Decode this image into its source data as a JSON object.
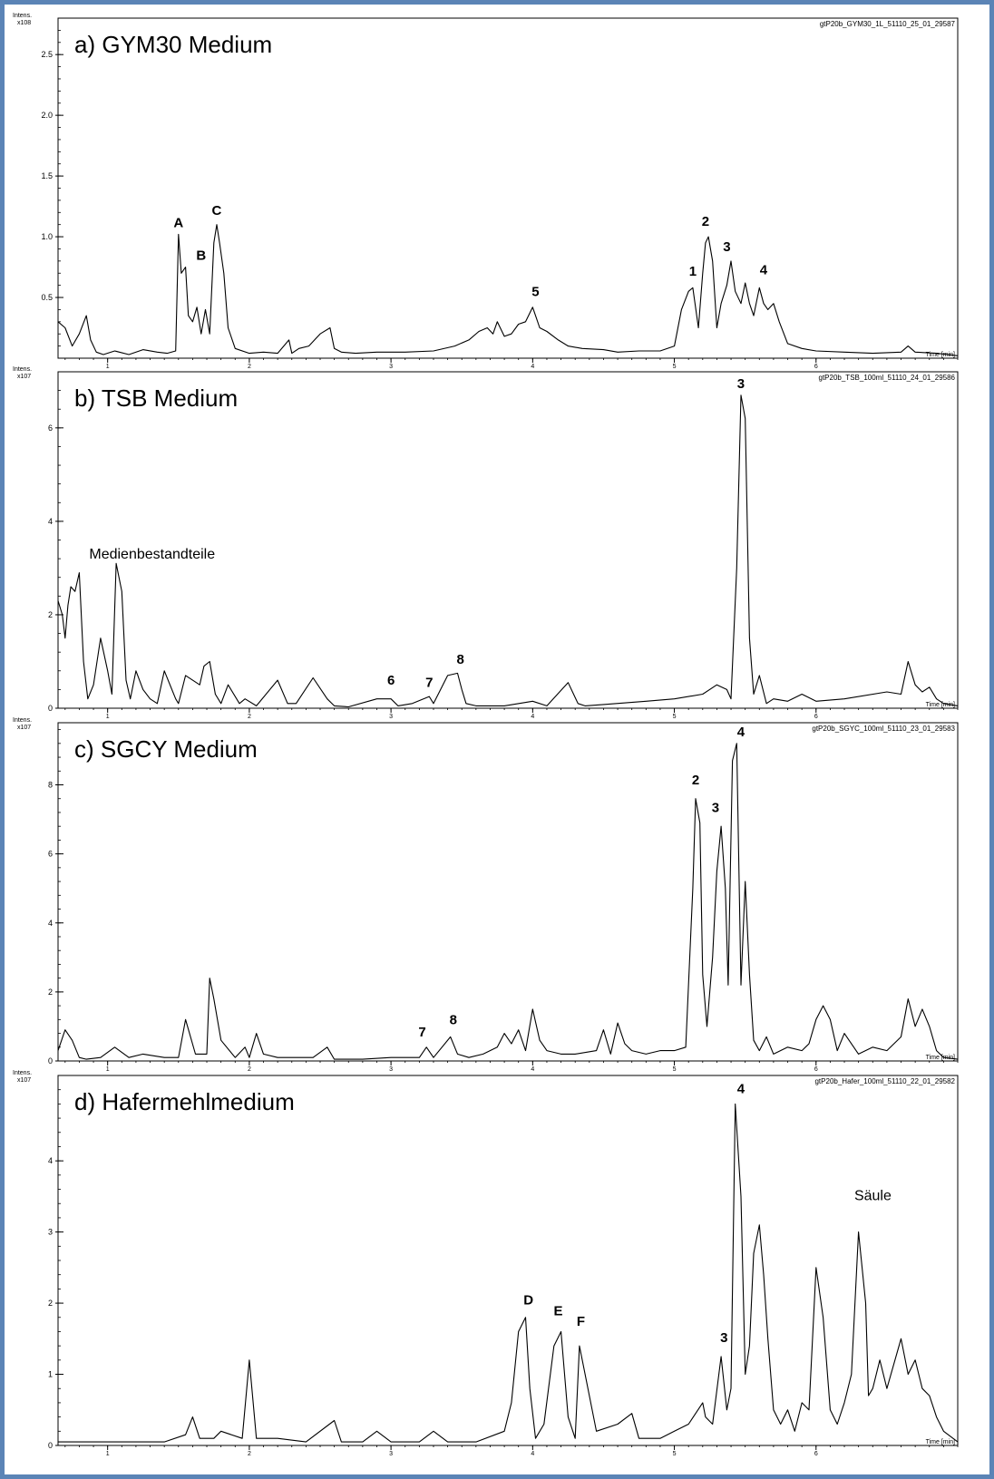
{
  "figure": {
    "frame_color": "#5b84b6",
    "trace_color": "#000000"
  },
  "chart_data": [
    {
      "type": "line",
      "title": "a) GYM30 Medium",
      "file_label": "gtP20b_GYM30_1L_51110_25_01_29587",
      "ylabel": "Intens.",
      "yunit": "x10^8",
      "xlabel": "Time [min]",
      "xlim": [
        0.65,
        7.0
      ],
      "ylim": [
        0,
        2.8
      ],
      "xticks": [
        1,
        2,
        3,
        4,
        5,
        6
      ],
      "yticks": [
        0.5,
        1.0,
        1.5,
        2.0,
        2.5
      ],
      "ytick_labels": [
        "0.5",
        "1.0",
        "1.5",
        "2.0",
        "2.5"
      ],
      "baseline": 0.03,
      "series": [
        {
          "x": [
            0.65,
            0.7,
            0.75,
            0.8,
            0.85,
            0.88,
            0.92,
            0.97,
            1.05,
            1.15,
            1.25,
            1.35,
            1.42,
            1.48,
            1.5,
            1.52,
            1.55,
            1.57,
            1.6,
            1.63,
            1.66,
            1.69,
            1.72,
            1.75,
            1.77,
            1.79,
            1.82,
            1.85,
            1.9,
            2.0,
            2.1,
            2.2,
            2.28,
            2.3,
            2.35,
            2.42,
            2.5,
            2.57,
            2.6,
            2.65,
            2.75,
            2.9,
            3.1,
            3.3,
            3.45,
            3.55,
            3.62,
            3.68,
            3.72,
            3.75,
            3.8,
            3.85,
            3.9,
            3.95,
            4.0,
            4.02,
            4.05,
            4.1,
            4.18,
            4.25,
            4.35,
            4.5,
            4.6,
            4.75,
            4.9,
            5.0,
            5.05,
            5.1,
            5.13,
            5.17,
            5.2,
            5.22,
            5.24,
            5.27,
            5.3,
            5.33,
            5.37,
            5.4,
            5.43,
            5.47,
            5.5,
            5.53,
            5.56,
            5.6,
            5.63,
            5.66,
            5.7,
            5.74,
            5.8,
            5.9,
            6.0,
            6.2,
            6.4,
            6.6,
            6.65,
            6.7,
            6.85,
            7.0
          ],
          "y": [
            0.3,
            0.25,
            0.1,
            0.2,
            0.35,
            0.15,
            0.05,
            0.03,
            0.06,
            0.03,
            0.07,
            0.05,
            0.04,
            0.06,
            1.02,
            0.7,
            0.75,
            0.35,
            0.3,
            0.42,
            0.2,
            0.4,
            0.2,
            0.95,
            1.1,
            0.95,
            0.7,
            0.25,
            0.08,
            0.04,
            0.05,
            0.04,
            0.15,
            0.04,
            0.08,
            0.1,
            0.2,
            0.25,
            0.08,
            0.05,
            0.04,
            0.05,
            0.05,
            0.06,
            0.1,
            0.15,
            0.22,
            0.25,
            0.2,
            0.3,
            0.18,
            0.2,
            0.28,
            0.3,
            0.42,
            0.35,
            0.25,
            0.22,
            0.15,
            0.1,
            0.08,
            0.07,
            0.05,
            0.06,
            0.06,
            0.1,
            0.4,
            0.55,
            0.58,
            0.25,
            0.7,
            0.95,
            1.0,
            0.8,
            0.25,
            0.45,
            0.6,
            0.8,
            0.55,
            0.45,
            0.62,
            0.45,
            0.35,
            0.58,
            0.45,
            0.4,
            0.45,
            0.3,
            0.12,
            0.08,
            0.06,
            0.05,
            0.04,
            0.05,
            0.1,
            0.05,
            0.04,
            0.02
          ]
        }
      ],
      "peak_labels": [
        {
          "label": "A",
          "x": 1.5,
          "y": 1.02
        },
        {
          "label": "B",
          "x": 1.66,
          "y": 0.75
        },
        {
          "label": "C",
          "x": 1.77,
          "y": 1.12
        },
        {
          "label": "1",
          "x": 5.13,
          "y": 0.62
        },
        {
          "label": "2",
          "x": 5.22,
          "y": 1.03
        },
        {
          "label": "3",
          "x": 5.37,
          "y": 0.82
        },
        {
          "label": "4",
          "x": 5.63,
          "y": 0.63
        },
        {
          "label": "5",
          "x": 4.02,
          "y": 0.45
        }
      ],
      "annotations": []
    },
    {
      "type": "line",
      "title": "b) TSB Medium",
      "file_label": "gtP20b_TSB_100ml_51110_24_01_29586",
      "ylabel": "Intens.",
      "yunit": "x10^7",
      "xlabel": "Time [min]",
      "xlim": [
        0.65,
        7.0
      ],
      "ylim": [
        0,
        7.2
      ],
      "xticks": [
        1,
        2,
        3,
        4,
        5,
        6
      ],
      "yticks": [
        0,
        2,
        4,
        6
      ],
      "ytick_labels": [
        "0",
        "2",
        "4",
        "6"
      ],
      "baseline": 0.0,
      "series": [
        {
          "x": [
            0.65,
            0.68,
            0.7,
            0.72,
            0.74,
            0.77,
            0.8,
            0.83,
            0.86,
            0.9,
            0.95,
            1.0,
            1.03,
            1.06,
            1.1,
            1.13,
            1.16,
            1.2,
            1.25,
            1.3,
            1.35,
            1.4,
            1.48,
            1.5,
            1.55,
            1.65,
            1.68,
            1.72,
            1.76,
            1.8,
            1.85,
            1.93,
            1.97,
            2.05,
            2.2,
            2.27,
            2.33,
            2.45,
            2.55,
            2.6,
            2.7,
            2.9,
            3.0,
            3.05,
            3.15,
            3.27,
            3.3,
            3.4,
            3.47,
            3.5,
            3.53,
            3.6,
            3.8,
            4.0,
            4.1,
            4.25,
            4.32,
            4.37,
            4.5,
            4.8,
            5.0,
            5.2,
            5.3,
            5.37,
            5.4,
            5.44,
            5.47,
            5.5,
            5.53,
            5.56,
            5.6,
            5.65,
            5.7,
            5.8,
            5.9,
            6.0,
            6.2,
            6.5,
            6.6,
            6.65,
            6.7,
            6.75,
            6.8,
            6.85,
            6.9,
            7.0
          ],
          "y": [
            2.3,
            2.0,
            1.5,
            2.2,
            2.6,
            2.5,
            2.9,
            1.0,
            0.2,
            0.5,
            1.5,
            0.8,
            0.3,
            3.1,
            2.5,
            0.6,
            0.2,
            0.8,
            0.4,
            0.2,
            0.1,
            0.8,
            0.2,
            0.1,
            0.7,
            0.5,
            0.9,
            1.0,
            0.3,
            0.1,
            0.5,
            0.1,
            0.2,
            0.05,
            0.6,
            0.1,
            0.1,
            0.65,
            0.2,
            0.05,
            0.03,
            0.2,
            0.2,
            0.05,
            0.1,
            0.25,
            0.1,
            0.7,
            0.75,
            0.4,
            0.1,
            0.05,
            0.05,
            0.15,
            0.05,
            0.55,
            0.1,
            0.05,
            0.08,
            0.15,
            0.2,
            0.3,
            0.5,
            0.4,
            0.2,
            3.0,
            6.7,
            6.2,
            1.5,
            0.3,
            0.7,
            0.1,
            0.2,
            0.15,
            0.3,
            0.15,
            0.2,
            0.35,
            0.3,
            1.0,
            0.5,
            0.35,
            0.45,
            0.2,
            0.1,
            0.05
          ]
        }
      ],
      "peak_labels": [
        {
          "label": "3",
          "x": 5.47,
          "y": 6.7
        },
        {
          "label": "6",
          "x": 3.0,
          "y": 0.35
        },
        {
          "label": "7",
          "x": 3.27,
          "y": 0.3
        },
        {
          "label": "8",
          "x": 3.49,
          "y": 0.8
        }
      ],
      "annotations": [
        {
          "text": "Medienbestandteile",
          "x": 0.87,
          "y": 3.2
        }
      ]
    },
    {
      "type": "line",
      "title": "c) SGCY Medium",
      "file_label": "gtP20b_SGYC_100ml_51110_23_01_29583",
      "ylabel": "Intens.",
      "yunit": "x10^7",
      "xlabel": "Time [min]",
      "xlim": [
        0.65,
        7.0
      ],
      "ylim": [
        0,
        9.8
      ],
      "xticks": [
        1,
        2,
        3,
        4,
        5,
        6
      ],
      "yticks": [
        0,
        2,
        4,
        6,
        8
      ],
      "ytick_labels": [
        "0",
        "2",
        "4",
        "6",
        "8"
      ],
      "baseline": 0.0,
      "series": [
        {
          "x": [
            0.65,
            0.7,
            0.75,
            0.8,
            0.85,
            0.95,
            1.05,
            1.15,
            1.25,
            1.4,
            1.5,
            1.55,
            1.62,
            1.7,
            1.72,
            1.75,
            1.8,
            1.9,
            1.97,
            2.0,
            2.05,
            2.1,
            2.2,
            2.45,
            2.55,
            2.6,
            2.8,
            3.0,
            3.2,
            3.25,
            3.3,
            3.42,
            3.47,
            3.55,
            3.65,
            3.75,
            3.8,
            3.85,
            3.9,
            3.95,
            4.0,
            4.05,
            4.1,
            4.2,
            4.3,
            4.45,
            4.5,
            4.55,
            4.6,
            4.65,
            4.7,
            4.8,
            4.9,
            5.0,
            5.08,
            5.13,
            5.15,
            5.18,
            5.2,
            5.23,
            5.27,
            5.3,
            5.33,
            5.36,
            5.38,
            5.41,
            5.44,
            5.47,
            5.5,
            5.53,
            5.56,
            5.6,
            5.65,
            5.7,
            5.8,
            5.9,
            5.95,
            6.0,
            6.05,
            6.1,
            6.15,
            6.2,
            6.3,
            6.4,
            6.5,
            6.6,
            6.65,
            6.7,
            6.75,
            6.8,
            6.85,
            6.9,
            7.0
          ],
          "y": [
            0.3,
            0.9,
            0.6,
            0.1,
            0.05,
            0.1,
            0.4,
            0.1,
            0.2,
            0.1,
            0.1,
            1.2,
            0.2,
            0.2,
            2.4,
            1.8,
            0.6,
            0.1,
            0.4,
            0.1,
            0.8,
            0.2,
            0.1,
            0.1,
            0.4,
            0.05,
            0.05,
            0.1,
            0.1,
            0.4,
            0.1,
            0.7,
            0.2,
            0.1,
            0.2,
            0.4,
            0.8,
            0.5,
            0.9,
            0.3,
            1.5,
            0.6,
            0.3,
            0.2,
            0.2,
            0.3,
            0.9,
            0.2,
            1.1,
            0.5,
            0.3,
            0.2,
            0.3,
            0.3,
            0.4,
            5.0,
            7.6,
            6.9,
            2.5,
            1.0,
            3.0,
            5.5,
            6.8,
            5.0,
            2.2,
            8.7,
            9.2,
            2.2,
            5.2,
            2.5,
            0.6,
            0.3,
            0.7,
            0.2,
            0.4,
            0.3,
            0.5,
            1.2,
            1.6,
            1.2,
            0.3,
            0.8,
            0.2,
            0.4,
            0.3,
            0.7,
            1.8,
            1.0,
            1.5,
            1.0,
            0.3,
            0.1,
            0.05
          ]
        }
      ],
      "peak_labels": [
        {
          "label": "2",
          "x": 5.15,
          "y": 7.8
        },
        {
          "label": "3",
          "x": 5.29,
          "y": 7.0
        },
        {
          "label": "4",
          "x": 5.47,
          "y": 9.2
        },
        {
          "label": "7",
          "x": 3.22,
          "y": 0.5
        },
        {
          "label": "8",
          "x": 3.44,
          "y": 0.85
        }
      ],
      "annotations": []
    },
    {
      "type": "line",
      "title": "d) Hafermehlmedium",
      "file_label": "gtP20b_Hafer_100ml_51110_22_01_29582",
      "ylabel": "Intens.",
      "yunit": "x10^7",
      "xlabel": "Time [min]",
      "xlim": [
        0.65,
        7.0
      ],
      "ylim": [
        0,
        5.2
      ],
      "xticks": [
        1,
        2,
        3,
        4,
        5,
        6
      ],
      "yticks": [
        0,
        1,
        2,
        3,
        4
      ],
      "ytick_labels": [
        "0",
        "1",
        "2",
        "3",
        "4"
      ],
      "baseline": 0.0,
      "series": [
        {
          "x": [
            0.65,
            0.8,
            1.0,
            1.2,
            1.4,
            1.55,
            1.6,
            1.65,
            1.75,
            1.8,
            1.95,
            2.0,
            2.05,
            2.2,
            2.4,
            2.6,
            2.65,
            2.8,
            2.9,
            3.0,
            3.2,
            3.3,
            3.4,
            3.6,
            3.8,
            3.85,
            3.9,
            3.95,
            3.98,
            4.02,
            4.08,
            4.15,
            4.2,
            4.25,
            4.3,
            4.33,
            4.38,
            4.45,
            4.6,
            4.7,
            4.75,
            4.9,
            5.0,
            5.1,
            5.2,
            5.22,
            5.27,
            5.33,
            5.37,
            5.4,
            5.43,
            5.47,
            5.5,
            5.53,
            5.56,
            5.6,
            5.63,
            5.66,
            5.7,
            5.75,
            5.8,
            5.85,
            5.9,
            5.95,
            6.0,
            6.05,
            6.1,
            6.15,
            6.2,
            6.25,
            6.3,
            6.35,
            6.37,
            6.4,
            6.45,
            6.5,
            6.6,
            6.65,
            6.7,
            6.75,
            6.8,
            6.85,
            6.9,
            7.0
          ],
          "y": [
            0.05,
            0.05,
            0.05,
            0.05,
            0.05,
            0.15,
            0.4,
            0.1,
            0.1,
            0.2,
            0.1,
            1.2,
            0.1,
            0.1,
            0.05,
            0.35,
            0.05,
            0.05,
            0.2,
            0.05,
            0.05,
            0.2,
            0.05,
            0.05,
            0.2,
            0.6,
            1.6,
            1.8,
            0.8,
            0.1,
            0.3,
            1.4,
            1.6,
            0.4,
            0.1,
            1.4,
            0.9,
            0.2,
            0.3,
            0.45,
            0.1,
            0.1,
            0.2,
            0.3,
            0.6,
            0.4,
            0.3,
            1.25,
            0.5,
            0.8,
            4.8,
            3.5,
            1.0,
            1.4,
            2.7,
            3.1,
            2.4,
            1.5,
            0.5,
            0.3,
            0.5,
            0.2,
            0.6,
            0.5,
            2.5,
            1.8,
            0.5,
            0.3,
            0.6,
            1.0,
            3.0,
            2.0,
            0.7,
            0.8,
            1.2,
            0.8,
            1.5,
            1.0,
            1.2,
            0.8,
            0.7,
            0.4,
            0.2,
            0.05
          ]
        }
      ],
      "peak_labels": [
        {
          "label": "D",
          "x": 3.97,
          "y": 1.88
        },
        {
          "label": "E",
          "x": 4.18,
          "y": 1.73
        },
        {
          "label": "F",
          "x": 4.34,
          "y": 1.58
        },
        {
          "label": "3",
          "x": 5.35,
          "y": 1.35
        },
        {
          "label": "4",
          "x": 5.47,
          "y": 4.85
        }
      ],
      "annotations": [
        {
          "text": "Säule",
          "x": 6.27,
          "y": 3.45
        }
      ]
    }
  ]
}
